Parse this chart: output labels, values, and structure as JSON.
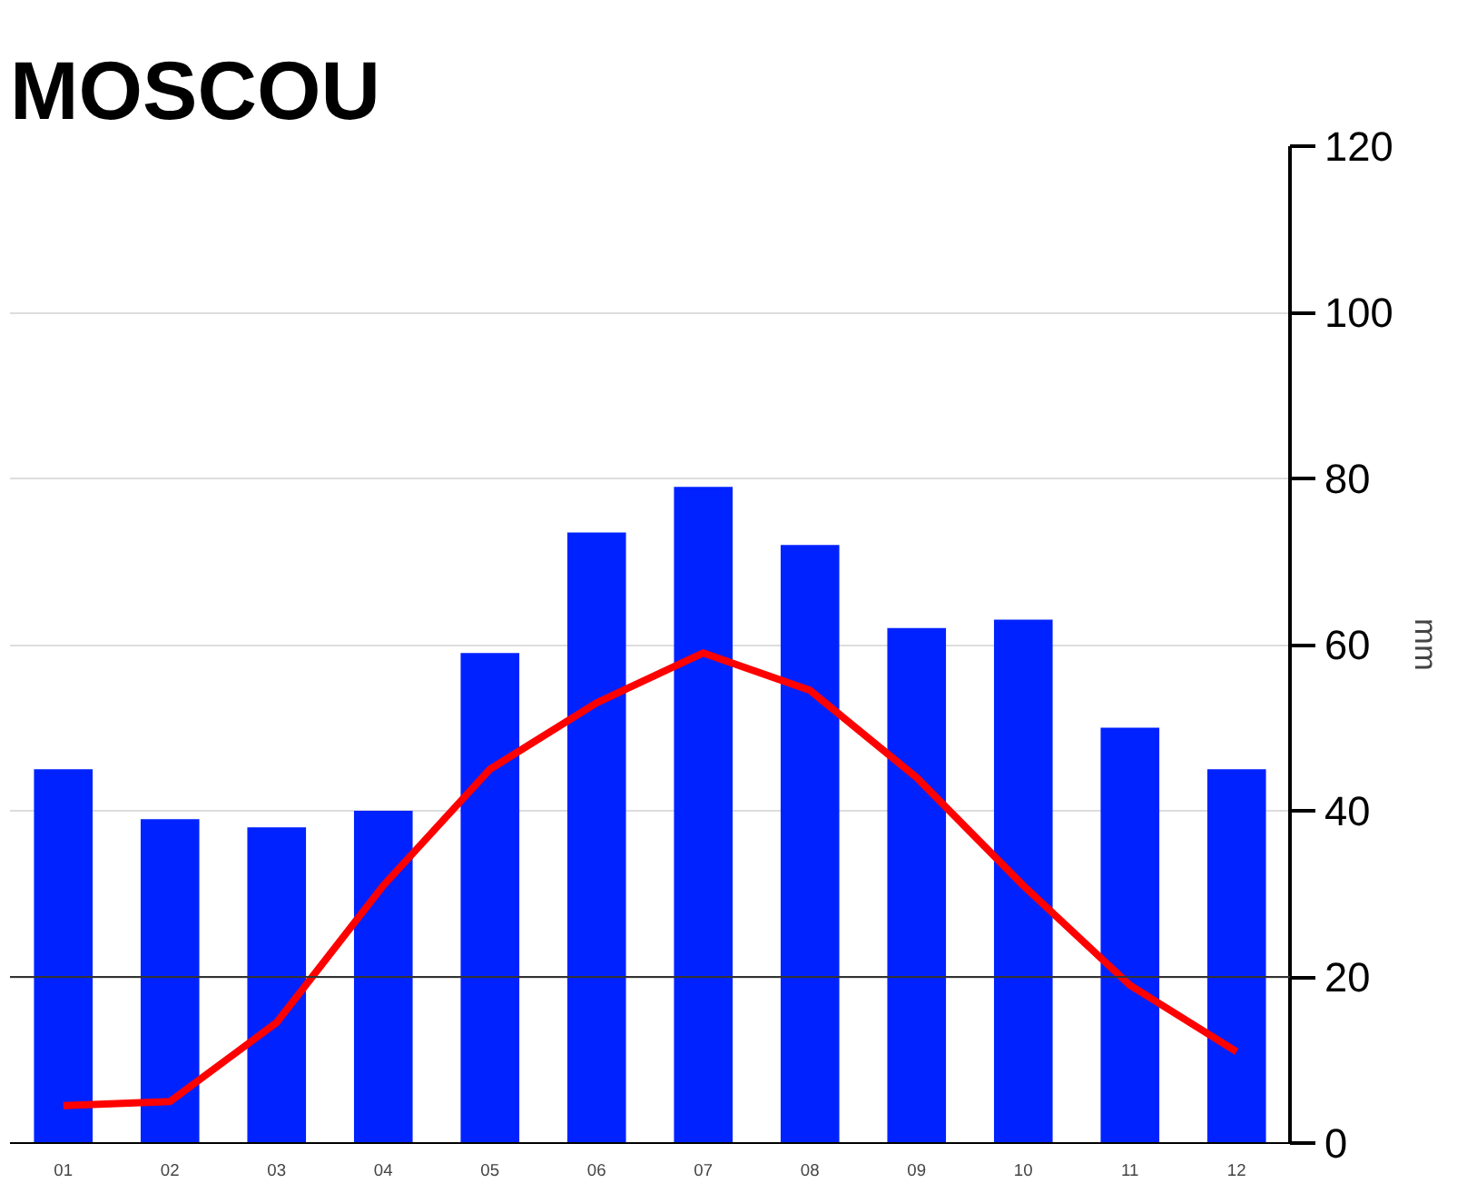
{
  "chart_data": {
    "type": "bar",
    "title": "MOSCOU",
    "ylabel": "mm",
    "categories": [
      "01",
      "02",
      "03",
      "04",
      "05",
      "06",
      "07",
      "08",
      "09",
      "10",
      "11",
      "12"
    ],
    "series": [
      {
        "color": "#0022ff",
        "values": [
          45,
          39,
          38,
          40,
          59,
          73.5,
          79,
          72,
          62,
          63,
          50,
          45
        ]
      },
      {
        "type": "line",
        "color": "#ff0000",
        "values": [
          4.5,
          5,
          14.5,
          31,
          45,
          53,
          59,
          54.5,
          44,
          31,
          19,
          11
        ]
      }
    ],
    "ylim": [
      0,
      120
    ],
    "yticks": [
      0,
      20,
      40,
      60,
      80,
      100,
      120
    ],
    "grid": "y",
    "ref_lines": [
      {
        "axis": "y",
        "value": 20,
        "color": "#333333"
      }
    ]
  }
}
